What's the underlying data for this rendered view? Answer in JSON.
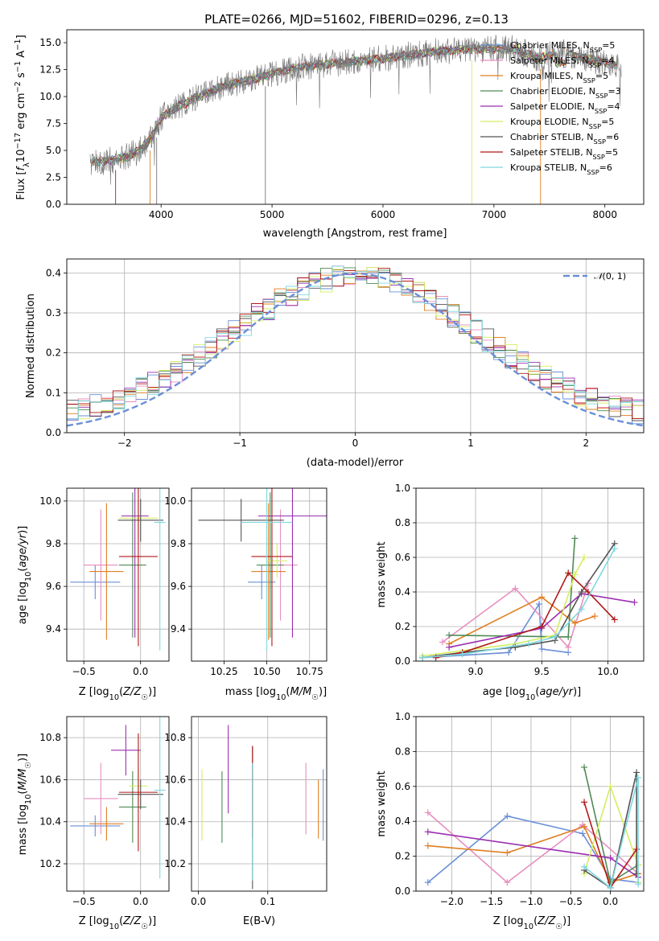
{
  "figure_title": "PLATE=0266, MJD=51602, FIBERID=0296, z=0.13",
  "colors": {
    "Chabrier MILES": "#6a8fd8",
    "Salpeter MILES": "#e88fc0",
    "Kroupa MILES": "#e07f22",
    "Chabrier ELODIE": "#4f8a55",
    "Salpeter ELODIE": "#9a2fb0",
    "Kroupa ELODIE": "#d4ee60",
    "Chabrier STELIB": "#555555",
    "Salpeter STELIB": "#b01818",
    "Kroupa STELIB": "#7fd8e0",
    "data": "#777777",
    "gauss": "#6a8fd8"
  },
  "chart_data": [
    {
      "id": "spectrum",
      "type": "line",
      "xlabel": "wavelength [Angstrom, rest frame]",
      "ylabel": "Flux [f_λ10^-17 erg cm^-2 s^-1 A^-1]",
      "xlim": [
        3150,
        8350
      ],
      "ylim": [
        0,
        16.2
      ],
      "xticks": [
        4000,
        5000,
        6000,
        7000,
        8000
      ],
      "yticks": [
        0.0,
        2.5,
        5.0,
        7.5,
        10.0,
        12.5,
        15.0
      ],
      "grid": false,
      "legend_position": "right",
      "legend": [
        {
          "label": "Chabrier MILES, N_SSP=5",
          "name": "Chabrier MILES",
          "nssp": "5"
        },
        {
          "label": "Salpeter MILES, N_SSP=4",
          "name": "Salpeter MILES",
          "nssp": "4"
        },
        {
          "label": "Kroupa MILES, N_SSP=5",
          "name": "Kroupa MILES",
          "nssp": "5"
        },
        {
          "label": "Chabrier ELODIE, N_SSP=3",
          "name": "Chabrier ELODIE",
          "nssp": "3"
        },
        {
          "label": "Salpeter ELODIE, N_SSP=4",
          "name": "Salpeter ELODIE",
          "nssp": "4"
        },
        {
          "label": "Kroupa ELODIE, N_SSP=5",
          "name": "Kroupa ELODIE",
          "nssp": "5"
        },
        {
          "label": "Chabrier STELIB, N_SSP=6",
          "name": "Chabrier STELIB",
          "nssp": "6"
        },
        {
          "label": "Salpeter STELIB, N_SSP=5",
          "name": "Salpeter STELIB",
          "nssp": "5"
        },
        {
          "label": "Kroupa STELIB, N_SSP=6",
          "name": "Kroupa STELIB",
          "nssp": "6"
        }
      ],
      "continuum": {
        "x": [
          3350,
          3500,
          3600,
          3700,
          3800,
          3900,
          4000,
          4100,
          4300,
          4500,
          4700,
          4900,
          5000,
          5200,
          5400,
          5600,
          5800,
          6000,
          6200,
          6400,
          6600,
          6800,
          7000,
          7200,
          7400,
          7600,
          7800,
          8000,
          8150
        ],
        "y": [
          3.9,
          4.0,
          4.2,
          4.4,
          5.0,
          6.0,
          8.0,
          8.8,
          9.8,
          10.7,
          11.3,
          11.8,
          12.2,
          12.6,
          12.9,
          13.1,
          13.3,
          13.5,
          13.8,
          14.1,
          14.3,
          14.4,
          14.5,
          14.4,
          13.5,
          14.2,
          13.6,
          13.2,
          12.8
        ]
      }
    },
    {
      "id": "residuals",
      "type": "line",
      "xlabel": "(data-model)/error",
      "ylabel": "Normed distribution",
      "xlim": [
        -2.5,
        2.5
      ],
      "ylim": [
        0,
        0.435
      ],
      "xticks": [
        -2,
        -1,
        0,
        1,
        2
      ],
      "yticks": [
        0.0,
        0.1,
        0.2,
        0.3,
        0.4
      ],
      "grid": true,
      "legend_position": "top-right",
      "legend": [
        {
          "label": "𝒩(0, 1)",
          "name": "gauss"
        }
      ],
      "bin_width": 0.1
    },
    {
      "id": "Z_vs_age",
      "type": "scatter",
      "xlabel": "Z [log10(Z/Z☉)]",
      "ylabel": "age  [log10(age/yr)]",
      "xlim": [
        -0.65,
        0.25
      ],
      "ylim": [
        9.25,
        10.06
      ],
      "xticks": [
        -0.5,
        0.0
      ],
      "yticks": [
        9.4,
        9.6,
        9.8,
        10.0
      ],
      "grid": true,
      "points": [
        {
          "name": "Chabrier MILES",
          "x": -0.4,
          "y": 9.62,
          "xerr": 0.22,
          "yerr": 0.08
        },
        {
          "name": "Salpeter MILES",
          "x": -0.35,
          "y": 9.7,
          "xerr": 0.15,
          "yerr": 0.26
        },
        {
          "name": "Kroupa MILES",
          "x": -0.3,
          "y": 9.67,
          "xerr": 0.15,
          "yerr": 0.32
        },
        {
          "name": "Chabrier ELODIE",
          "x": -0.07,
          "y": 9.7,
          "xerr": 0.12,
          "yerr": 0.34
        },
        {
          "name": "Salpeter ELODIE",
          "x": -0.05,
          "y": 9.93,
          "xerr": 0.12,
          "yerr": 0.57
        },
        {
          "name": "Kroupa ELODIE",
          "x": -0.02,
          "y": 9.92,
          "xerr": 0.17,
          "yerr": 0.08
        },
        {
          "name": "Chabrier STELIB",
          "x": 0.0,
          "y": 9.91,
          "xerr": 0.2,
          "yerr": 0.1
        },
        {
          "name": "Salpeter STELIB",
          "x": -0.02,
          "y": 9.74,
          "xerr": 0.17,
          "yerr": 0.42
        },
        {
          "name": "Kroupa STELIB",
          "x": 0.17,
          "y": 9.9,
          "xerr": 0.05,
          "yerr": 0.6
        }
      ]
    },
    {
      "id": "mass_vs_age",
      "type": "scatter",
      "xlabel": "mass [log10(M/M☉)]",
      "ylabel": "",
      "xlim": [
        10.06,
        10.85
      ],
      "ylim": [
        9.25,
        10.06
      ],
      "xticks": [
        10.25,
        10.5,
        10.75
      ],
      "xticklabels": [
        "10.25",
        "10.50",
        "10.75"
      ],
      "yticks": [
        9.4,
        9.6,
        9.8,
        10.0
      ],
      "grid": true,
      "points": [
        {
          "name": "Chabrier MILES",
          "x": 10.47,
          "y": 9.62,
          "xerr": 0.08,
          "yerr": 0.08
        },
        {
          "name": "Salpeter MILES",
          "x": 10.58,
          "y": 9.7,
          "xerr": 0.1,
          "yerr": 0.26
        },
        {
          "name": "Kroupa MILES",
          "x": 10.51,
          "y": 9.67,
          "xerr": 0.1,
          "yerr": 0.32
        },
        {
          "name": "Chabrier ELODIE",
          "x": 10.52,
          "y": 9.7,
          "xerr": 0.08,
          "yerr": 0.34
        },
        {
          "name": "Salpeter ELODIE",
          "x": 10.65,
          "y": 9.93,
          "xerr": 0.2,
          "yerr": 0.57
        },
        {
          "name": "Kroupa ELODIE",
          "x": 10.56,
          "y": 9.72,
          "xerr": 0.06,
          "yerr": 0.08
        },
        {
          "name": "Chabrier STELIB",
          "x": 10.35,
          "y": 9.91,
          "xerr": 0.25,
          "yerr": 0.1
        },
        {
          "name": "Salpeter STELIB",
          "x": 10.53,
          "y": 9.74,
          "xerr": 0.12,
          "yerr": 0.42
        },
        {
          "name": "Kroupa STELIB",
          "x": 10.5,
          "y": 9.9,
          "xerr": 0.15,
          "yerr": 0.6
        }
      ]
    },
    {
      "id": "age_vs_massweight",
      "type": "line",
      "xlabel": "age  [log10(age/yr)]",
      "ylabel": "mass weight",
      "xlim": [
        8.55,
        10.27
      ],
      "ylim": [
        0,
        1.0
      ],
      "xticks": [
        9.0,
        9.5,
        10.0
      ],
      "yticks": [
        0.0,
        0.2,
        0.4,
        0.6,
        0.8,
        1.0
      ],
      "grid": true,
      "series": [
        {
          "name": "Chabrier MILES",
          "x": [
            8.6,
            9.25,
            9.48,
            9.5,
            9.7
          ],
          "y": [
            0.02,
            0.05,
            0.33,
            0.07,
            0.05
          ]
        },
        {
          "name": "Salpeter MILES",
          "x": [
            8.75,
            9.3,
            9.7,
            9.85
          ],
          "y": [
            0.11,
            0.42,
            0.08,
            0.45
          ]
        },
        {
          "name": "Kroupa MILES",
          "x": [
            8.8,
            9.5,
            9.75,
            9.9
          ],
          "y": [
            0.1,
            0.37,
            0.22,
            0.26
          ]
        },
        {
          "name": "Chabrier ELODIE",
          "x": [
            8.8,
            9.7,
            9.75
          ],
          "y": [
            0.15,
            0.14,
            0.71
          ]
        },
        {
          "name": "Salpeter ELODIE",
          "x": [
            8.8,
            9.5,
            9.8,
            10.2
          ],
          "y": [
            0.08,
            0.19,
            0.39,
            0.34
          ]
        },
        {
          "name": "Kroupa ELODIE",
          "x": [
            8.6,
            9.3,
            9.6,
            9.75,
            9.82
          ],
          "y": [
            0.03,
            0.1,
            0.15,
            0.5,
            0.6
          ]
        },
        {
          "name": "Chabrier STELIB",
          "x": [
            8.6,
            8.9,
            9.3,
            9.6,
            9.8,
            10.05
          ],
          "y": [
            0.02,
            0.05,
            0.08,
            0.12,
            0.4,
            0.68
          ]
        },
        {
          "name": "Salpeter STELIB",
          "x": [
            8.7,
            8.9,
            9.5,
            9.7,
            9.85,
            10.05
          ],
          "y": [
            0.02,
            0.05,
            0.2,
            0.51,
            0.4,
            0.24
          ]
        },
        {
          "name": "Kroupa STELIB",
          "x": [
            8.6,
            8.9,
            9.4,
            9.6,
            9.8,
            10.05
          ],
          "y": [
            0.02,
            0.04,
            0.1,
            0.14,
            0.3,
            0.65
          ]
        }
      ]
    },
    {
      "id": "Z_vs_mass",
      "type": "scatter",
      "xlabel": "Z [log10(Z/Z☉)]",
      "ylabel": "mass [log10(M/M☉)]",
      "xlim": [
        -0.65,
        0.25
      ],
      "ylim": [
        10.07,
        10.9
      ],
      "xticks": [
        -0.5,
        0.0
      ],
      "yticks": [
        10.2,
        10.4,
        10.6,
        10.8
      ],
      "grid": true,
      "points": [
        {
          "name": "Chabrier MILES",
          "x": -0.4,
          "y": 10.38,
          "xerr": 0.22,
          "yerr": 0.05
        },
        {
          "name": "Salpeter MILES",
          "x": -0.35,
          "y": 10.51,
          "xerr": 0.15,
          "yerr": 0.17
        },
        {
          "name": "Kroupa MILES",
          "x": -0.3,
          "y": 10.39,
          "xerr": 0.15,
          "yerr": 0.08
        },
        {
          "name": "Chabrier ELODIE",
          "x": -0.07,
          "y": 10.47,
          "xerr": 0.12,
          "yerr": 0.17
        },
        {
          "name": "Salpeter ELODIE",
          "x": -0.13,
          "y": 10.74,
          "xerr": 0.13,
          "yerr": 0.12
        },
        {
          "name": "Kroupa ELODIE",
          "x": -0.02,
          "y": 10.57,
          "xerr": 0.08,
          "yerr": 0.08
        },
        {
          "name": "Chabrier STELIB",
          "x": 0.0,
          "y": 10.53,
          "xerr": 0.2,
          "yerr": 0.07
        },
        {
          "name": "Salpeter STELIB",
          "x": -0.02,
          "y": 10.54,
          "xerr": 0.17,
          "yerr": 0.28
        },
        {
          "name": "Kroupa STELIB",
          "x": 0.17,
          "y": 10.55,
          "xerr": 0.05,
          "yerr": 0.42
        }
      ]
    },
    {
      "id": "ebv_vs_mass",
      "type": "scatter",
      "xlabel": "E(B-V)",
      "ylabel": "",
      "xlim": [
        -0.01,
        0.185
      ],
      "ylim": [
        10.07,
        10.9
      ],
      "xticks": [
        0.0,
        0.1
      ],
      "yticks": [
        10.2,
        10.4,
        10.6,
        10.8
      ],
      "grid": true,
      "points": [
        {
          "name": "Chabrier MILES",
          "x": 0.18,
          "y": 10.48,
          "yerr": 0.17
        },
        {
          "name": "Salpeter MILES",
          "x": 0.155,
          "y": 10.51,
          "yerr": 0.17
        },
        {
          "name": "Kroupa MILES",
          "x": 0.173,
          "y": 10.46,
          "yerr": 0.14
        },
        {
          "name": "Chabrier ELODIE",
          "x": 0.034,
          "y": 10.47,
          "yerr": 0.17
        },
        {
          "name": "Salpeter ELODIE",
          "x": 0.043,
          "y": 10.65,
          "yerr": 0.21
        },
        {
          "name": "Kroupa ELODIE",
          "x": 0.005,
          "y": 10.48,
          "yerr": 0.17
        },
        {
          "name": "Chabrier STELIB",
          "x": 0.078,
          "y": 10.42,
          "yerr": 0.34
        },
        {
          "name": "Salpeter STELIB",
          "x": 0.078,
          "y": 10.54,
          "yerr": 0.22
        },
        {
          "name": "Kroupa STELIB",
          "x": 0.078,
          "y": 10.4,
          "yerr": 0.28
        }
      ]
    },
    {
      "id": "Z_vs_massweight",
      "type": "line",
      "xlabel": "Z [log10(Z/Z☉)]",
      "ylabel": "mass weight",
      "xlim": [
        -2.45,
        0.42
      ],
      "ylim": [
        0,
        1.0
      ],
      "xticks": [
        -2.0,
        -1.5,
        -1.0,
        -0.5,
        0.0
      ],
      "yticks": [
        0.0,
        0.2,
        0.4,
        0.6,
        0.8,
        1.0
      ],
      "grid": true,
      "series": [
        {
          "name": "Chabrier MILES",
          "x": [
            -2.3,
            -1.3,
            -0.35,
            0.0,
            0.35
          ],
          "y": [
            0.05,
            0.43,
            0.33,
            0.07,
            0.05
          ]
        },
        {
          "name": "Salpeter MILES",
          "x": [
            -2.3,
            -1.3,
            -0.35,
            0.35
          ],
          "y": [
            0.45,
            0.05,
            0.38,
            0.1
          ]
        },
        {
          "name": "Kroupa MILES",
          "x": [
            -2.3,
            -1.3,
            -0.33,
            0.0,
            0.35
          ],
          "y": [
            0.26,
            0.22,
            0.37,
            0.05,
            0.1
          ]
        },
        {
          "name": "Chabrier ELODIE",
          "x": [
            -0.33,
            0.0,
            0.35
          ],
          "y": [
            0.71,
            0.05,
            0.15
          ]
        },
        {
          "name": "Salpeter ELODIE",
          "x": [
            -2.3,
            0.0,
            0.35
          ],
          "y": [
            0.34,
            0.19,
            0.08
          ]
        },
        {
          "name": "Kroupa ELODIE",
          "x": [
            -0.33,
            0.0,
            0.35,
            0.35
          ],
          "y": [
            0.1,
            0.6,
            0.15,
            0.05
          ]
        },
        {
          "name": "Chabrier STELIB",
          "x": [
            -0.33,
            0.0,
            0.33,
            0.33
          ],
          "y": [
            0.12,
            0.02,
            0.68,
            0.1
          ]
        },
        {
          "name": "Salpeter STELIB",
          "x": [
            -0.33,
            0.0,
            0.33
          ],
          "y": [
            0.51,
            0.02,
            0.24
          ]
        },
        {
          "name": "Kroupa STELIB",
          "x": [
            -0.33,
            0.0,
            0.35,
            0.35
          ],
          "y": [
            0.14,
            0.02,
            0.65,
            0.04
          ]
        }
      ]
    }
  ]
}
